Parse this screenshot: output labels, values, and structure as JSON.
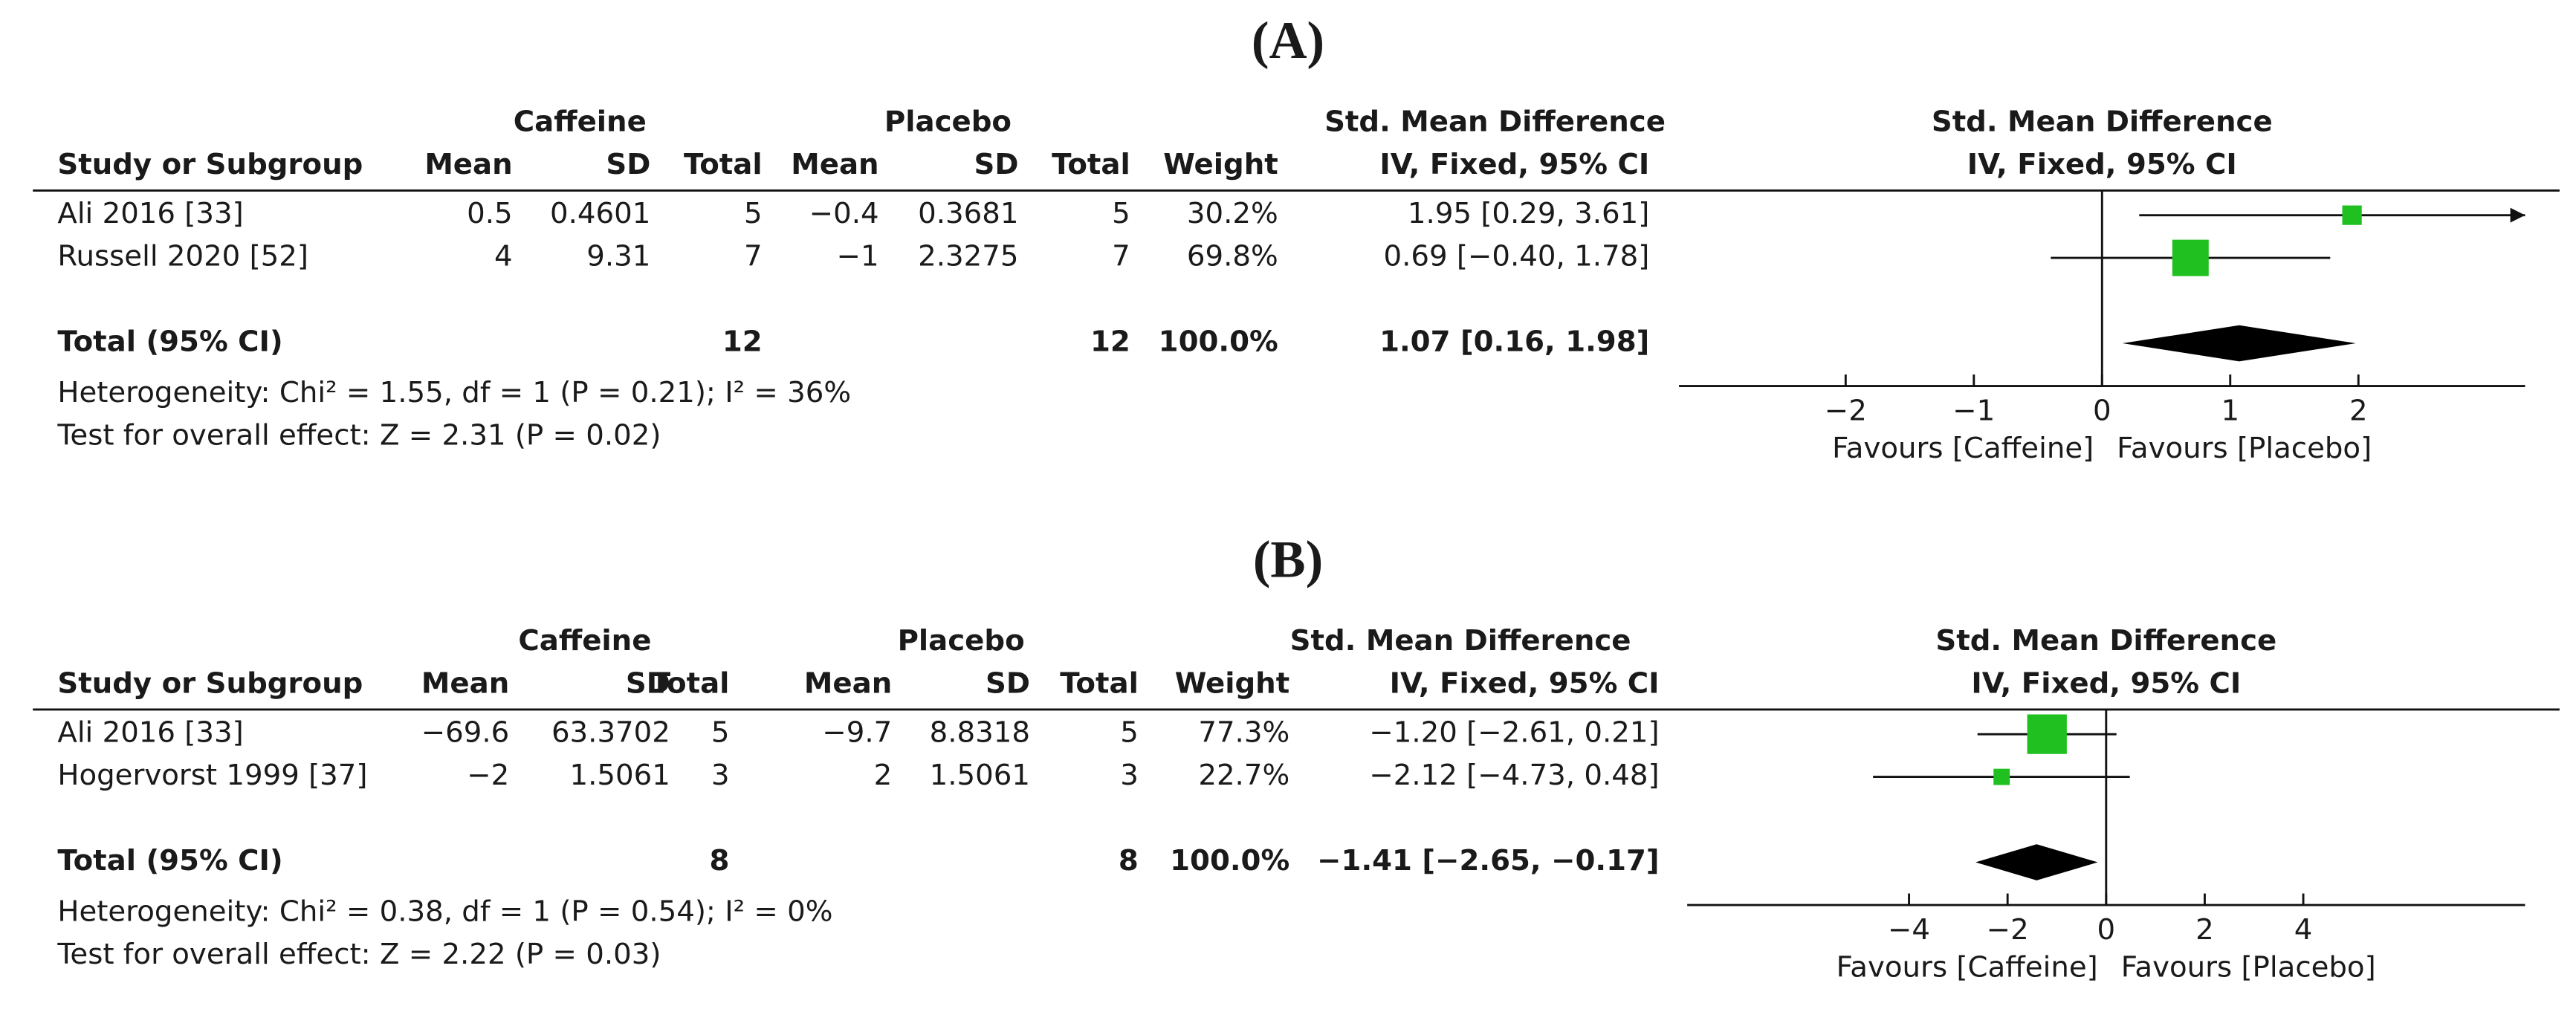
{
  "panels": [
    {
      "label": "(A)",
      "table": {
        "group_headers": [
          "Caffeine",
          "Placebo",
          "Std. Mean Difference"
        ],
        "columns": [
          "Study or Subgroup",
          "Mean",
          "SD",
          "Total",
          "Mean",
          "SD",
          "Total",
          "Weight",
          "IV, Fixed, 95% CI"
        ],
        "studies": [
          {
            "name": "Ali 2016 [33]",
            "cells": [
              "0.5",
              "0.4601",
              "5",
              "−0.4",
              "0.3681",
              "5"
            ],
            "weight": 30.2,
            "weight_label": "30.2%",
            "smd": 1.95,
            "ci": [
              0.29,
              3.61
            ],
            "smd_label": "1.95 [0.29, 3.61]"
          },
          {
            "name": "Russell 2020 [52]",
            "cells": [
              "4",
              "9.31",
              "7",
              "−1",
              "2.3275",
              "7"
            ],
            "weight": 69.8,
            "weight_label": "69.8%",
            "smd": 0.69,
            "ci": [
              -0.4,
              1.78
            ],
            "smd_label": "0.69 [−0.40, 1.78]"
          }
        ],
        "total": {
          "name": "Total (95% CI)",
          "caffeine_total": "12",
          "placebo_total": "12",
          "weight_label": "100.0%",
          "smd": 1.07,
          "ci": [
            0.16,
            1.98
          ],
          "smd_label": "1.07 [0.16, 1.98]"
        },
        "heterogeneity": "Heterogeneity: Chi² = 1.55, df = 1 (P = 0.21); I² = 36%",
        "overall_effect": "Test for overall effect: Z = 2.31 (P = 0.02)"
      },
      "plot": {
        "title": "Std. Mean Difference",
        "subtitle": "IV, Fixed, 95% CI",
        "xlim": [
          -3.3,
          3.3
        ],
        "xticks": [
          {
            "value": -2,
            "label": "−2"
          },
          {
            "value": -1,
            "label": "−1"
          },
          0,
          1,
          2
        ],
        "left_label": "Favours [Caffeine]",
        "right_label": "Favours [Placebo]",
        "color": "#1fc01f"
      }
    },
    {
      "label": "(B)",
      "table": {
        "group_headers": [
          "Caffeine",
          "Placebo",
          "Std. Mean Difference"
        ],
        "columns": [
          "Study or Subgroup",
          "Mean",
          "SD",
          "Total",
          "Mean",
          "SD",
          "Total",
          "Weight",
          "IV, Fixed, 95% CI"
        ],
        "studies": [
          {
            "name": "Ali 2016 [33]",
            "cells": [
              "−69.6",
              "63.3702",
              "5",
              "−9.7",
              "8.8318",
              "5"
            ],
            "weight": 77.3,
            "weight_label": "77.3%",
            "smd": -1.2,
            "ci": [
              -2.61,
              0.21
            ],
            "smd_label": "−1.20 [−2.61, 0.21]"
          },
          {
            "name": "Hogervorst 1999 [37]",
            "cells": [
              "−2",
              "1.5061",
              "3",
              "2",
              "1.5061",
              "3"
            ],
            "weight": 22.7,
            "weight_label": "22.7%",
            "smd": -2.12,
            "ci": [
              -4.73,
              0.48
            ],
            "smd_label": "−2.12 [−4.73, 0.48]"
          }
        ],
        "total": {
          "name": "Total (95% CI)",
          "caffeine_total": "8",
          "placebo_total": "8",
          "weight_label": "100.0%",
          "smd": -1.41,
          "ci": [
            -2.65,
            -0.17
          ],
          "smd_label": "−1.41 [−2.65, −0.17]"
        },
        "heterogeneity": "Heterogeneity: Chi² = 0.38, df = 1 (P = 0.54); I² = 0%",
        "overall_effect": "Test for overall effect: Z = 2.22 (P = 0.03)"
      },
      "plot": {
        "title": "Std. Mean Difference",
        "subtitle": "IV, Fixed, 95% CI",
        "xlim": [
          -8.5,
          8.5
        ],
        "xticks": [
          {
            "value": -4,
            "label": "−4"
          },
          {
            "value": -2,
            "label": "−2"
          },
          0,
          2,
          4
        ],
        "left_label": "Favours [Caffeine]",
        "right_label": "Favours [Placebo]",
        "color": "#1fc01f"
      }
    }
  ]
}
